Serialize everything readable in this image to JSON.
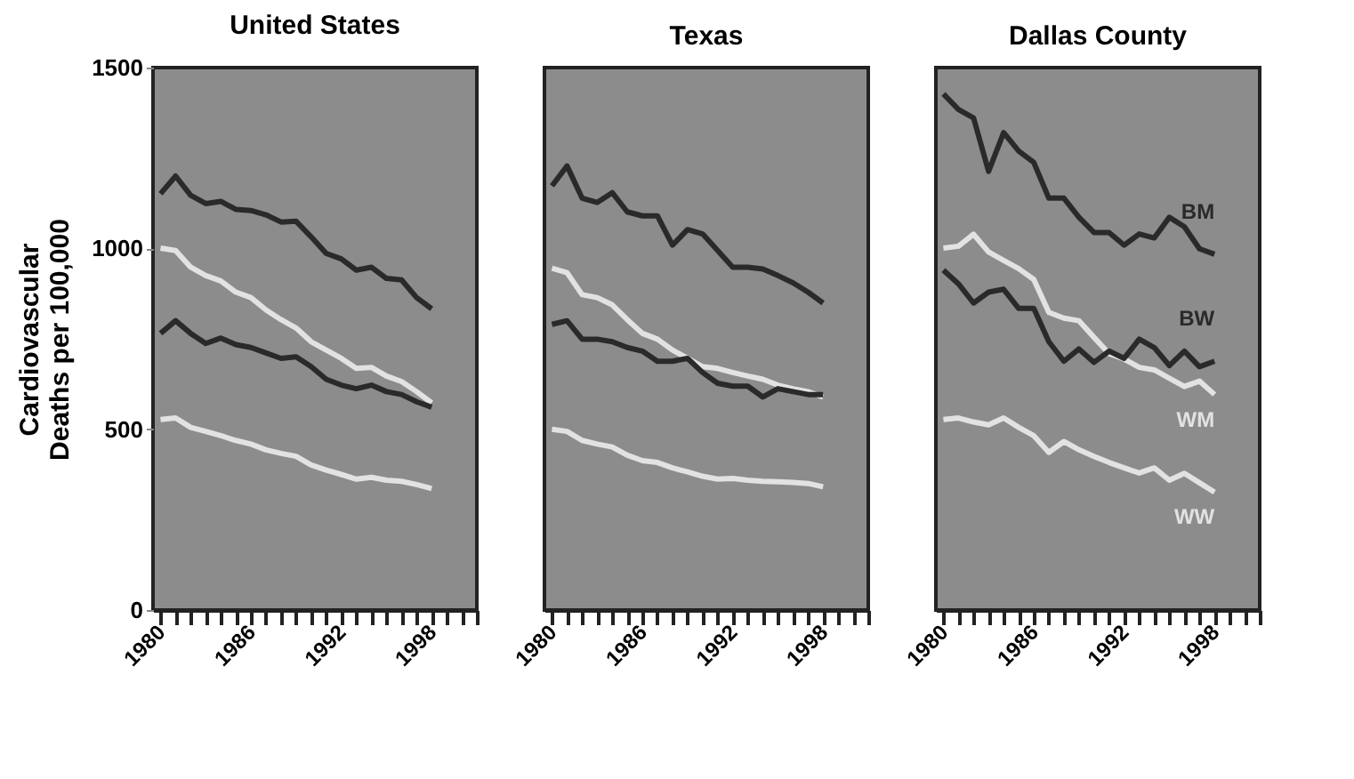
{
  "chart_data": [
    {
      "type": "line",
      "title": "United States",
      "ylabel": "Cardiovascular\nDeaths per 100,000",
      "x": [
        1980,
        1981,
        1982,
        1983,
        1984,
        1985,
        1986,
        1987,
        1988,
        1989,
        1990,
        1991,
        1992,
        1993,
        1994,
        1995,
        1996,
        1997,
        1998
      ],
      "xlim": [
        1979.5,
        2001
      ],
      "ylim": [
        0,
        1500
      ],
      "yticks": [
        0,
        500,
        1000,
        1500
      ],
      "xticks": [
        1980,
        {
          "value": 1981,
          "label": null
        },
        {
          "value": 1982,
          "label": null
        },
        {
          "value": 1983,
          "label": null
        },
        {
          "value": 1984,
          "label": null
        },
        {
          "value": 1985,
          "label": null
        },
        1986,
        {
          "value": 1987,
          "label": null
        },
        {
          "value": 1988,
          "label": null
        },
        {
          "value": 1989,
          "label": null
        },
        {
          "value": 1990,
          "label": null
        },
        {
          "value": 1991,
          "label": null
        },
        1992,
        {
          "value": 1993,
          "label": null
        },
        {
          "value": 1994,
          "label": null
        },
        {
          "value": 1995,
          "label": null
        },
        {
          "value": 1996,
          "label": null
        },
        {
          "value": 1997,
          "label": null
        },
        1998,
        {
          "value": 1999,
          "label": null
        },
        {
          "value": 2000,
          "label": null
        },
        {
          "value": 2001,
          "label": null
        }
      ],
      "marker": "none",
      "line_style": "solid",
      "series": [
        {
          "color": "#2a2a2a",
          "values": [
            1151,
            1200,
            1147,
            1124,
            1130,
            1108,
            1105,
            1093,
            1073,
            1075,
            1032,
            986,
            971,
            940,
            948,
            917,
            913,
            864,
            833
          ]
        },
        {
          "color": "#e2e2e2",
          "values": [
            1001,
            994,
            948,
            925,
            910,
            879,
            864,
            830,
            803,
            780,
            742,
            719,
            696,
            668,
            671,
            647,
            632,
            604,
            573
          ]
        },
        {
          "color": "#2a2a2a",
          "values": [
            765,
            800,
            765,
            737,
            752,
            734,
            726,
            711,
            696,
            700,
            673,
            638,
            622,
            612,
            622,
            604,
            596,
            576,
            561
          ]
        },
        {
          "color": "#e2e2e2",
          "values": [
            527,
            531,
            505,
            494,
            482,
            469,
            459,
            443,
            433,
            425,
            401,
            387,
            375,
            362,
            367,
            359,
            356,
            347,
            336
          ]
        }
      ]
    },
    {
      "type": "line",
      "title": "Texas",
      "tick_labels": "x",
      "x": [
        1980,
        1981,
        1982,
        1983,
        1984,
        1985,
        1986,
        1987,
        1988,
        1989,
        1990,
        1991,
        1992,
        1993,
        1994,
        1995,
        1996,
        1997,
        1998
      ],
      "xlim": [
        1979.5,
        2001
      ],
      "ylim": [
        0,
        1500
      ],
      "yticks": [
        0,
        500,
        1000,
        1500
      ],
      "xticks": [
        1980,
        {
          "value": 1981,
          "label": null
        },
        {
          "value": 1982,
          "label": null
        },
        {
          "value": 1983,
          "label": null
        },
        {
          "value": 1984,
          "label": null
        },
        {
          "value": 1985,
          "label": null
        },
        1986,
        {
          "value": 1987,
          "label": null
        },
        {
          "value": 1988,
          "label": null
        },
        {
          "value": 1989,
          "label": null
        },
        {
          "value": 1990,
          "label": null
        },
        {
          "value": 1991,
          "label": null
        },
        1992,
        {
          "value": 1993,
          "label": null
        },
        {
          "value": 1994,
          "label": null
        },
        {
          "value": 1995,
          "label": null
        },
        {
          "value": 1996,
          "label": null
        },
        {
          "value": 1997,
          "label": null
        },
        1998,
        {
          "value": 1999,
          "label": null
        },
        {
          "value": 2000,
          "label": null
        },
        {
          "value": 2001,
          "label": null
        }
      ],
      "marker": "none",
      "line_style": "solid",
      "series": [
        {
          "color": "#2a2a2a",
          "values": [
            1173,
            1228,
            1139,
            1127,
            1154,
            1101,
            1090,
            1090,
            1009,
            1052,
            1040,
            994,
            948,
            948,
            943,
            925,
            905,
            879,
            849
          ]
        },
        {
          "color": "#e2e2e2",
          "values": [
            945,
            933,
            872,
            864,
            844,
            803,
            765,
            749,
            719,
            696,
            673,
            668,
            657,
            647,
            638,
            622,
            612,
            604,
            589
          ]
        },
        {
          "color": "#2a2a2a",
          "values": [
            790,
            800,
            749,
            749,
            742,
            726,
            716,
            688,
            688,
            696,
            657,
            627,
            619,
            619,
            589,
            612,
            604,
            596,
            596
          ]
        },
        {
          "color": "#e2e2e2",
          "values": [
            500,
            494,
            469,
            459,
            451,
            428,
            413,
            408,
            393,
            382,
            370,
            362,
            364,
            359,
            356,
            355,
            353,
            350,
            341
          ]
        }
      ]
    },
    {
      "type": "line",
      "title": "Dallas County",
      "tick_labels": "x",
      "x": [
        1980,
        1981,
        1982,
        1983,
        1984,
        1985,
        1986,
        1987,
        1988,
        1989,
        1990,
        1991,
        1992,
        1993,
        1994,
        1995,
        1996,
        1997,
        1998
      ],
      "xlim": [
        1979.5,
        2001
      ],
      "ylim": [
        0,
        1500
      ],
      "yticks": [
        0,
        500,
        1000,
        1500
      ],
      "xticks": [
        1980,
        {
          "value": 1981,
          "label": null
        },
        {
          "value": 1982,
          "label": null
        },
        {
          "value": 1983,
          "label": null
        },
        {
          "value": 1984,
          "label": null
        },
        {
          "value": 1985,
          "label": null
        },
        1986,
        {
          "value": 1987,
          "label": null
        },
        {
          "value": 1988,
          "label": null
        },
        {
          "value": 1989,
          "label": null
        },
        {
          "value": 1990,
          "label": null
        },
        {
          "value": 1991,
          "label": null
        },
        1992,
        {
          "value": 1993,
          "label": null
        },
        {
          "value": 1994,
          "label": null
        },
        {
          "value": 1995,
          "label": null
        },
        {
          "value": 1996,
          "label": null
        },
        {
          "value": 1997,
          "label": null
        },
        1998,
        {
          "value": 1999,
          "label": null
        },
        {
          "value": 2000,
          "label": null
        },
        {
          "value": 2001,
          "label": null
        }
      ],
      "marker": "none",
      "line_style": "solid",
      "series": [
        {
          "name": "BM",
          "color": "#2a2a2a",
          "values": [
            1427,
            1384,
            1361,
            1213,
            1320,
            1269,
            1238,
            1139,
            1139,
            1086,
            1044,
            1044,
            1009,
            1040,
            1029,
            1086,
            1060,
            999,
            984
          ]
        },
        {
          "name": "WM",
          "color": "#e2e2e2",
          "values": [
            1001,
            1006,
            1039,
            990,
            967,
            944,
            914,
            823,
            807,
            800,
            754,
            709,
            694,
            671,
            664,
            641,
            618,
            633,
            596
          ]
        },
        {
          "name": "BW",
          "color": "#2a2a2a",
          "values": [
            940,
            902,
            849,
            879,
            887,
            834,
            834,
            742,
            688,
            722,
            685,
            716,
            696,
            749,
            726,
            676,
            716,
            673,
            688
          ]
        },
        {
          "name": "WW",
          "color": "#e2e2e2",
          "values": [
            527,
            531,
            520,
            512,
            531,
            505,
            482,
            436,
            466,
            443,
            425,
            408,
            393,
            379,
            393,
            359,
            378,
            352,
            326
          ]
        }
      ]
    }
  ]
}
